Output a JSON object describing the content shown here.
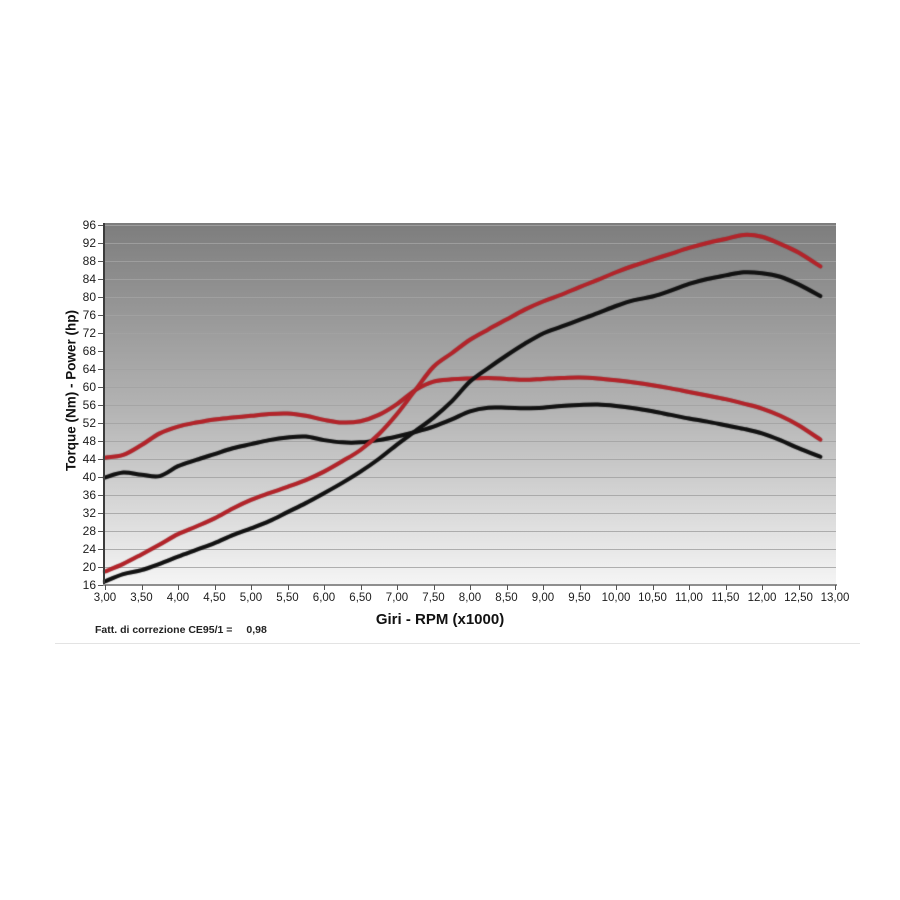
{
  "chart_data": {
    "type": "line",
    "title": "",
    "xlabel": "Giri - RPM (x1000)",
    "ylabel": "Torque (Nm) - Power (hp)",
    "xlim": [
      3,
      13
    ],
    "ylim": [
      16,
      96
    ],
    "grid": "horizontal gridlines every 4 units",
    "legend_position": "none",
    "background": "vertical gradient dark gray to white",
    "x_tick_labels": [
      "3,00",
      "3,50",
      "4,00",
      "4,50",
      "5,00",
      "5,50",
      "6,00",
      "6,50",
      "7,00",
      "7,50",
      "8,00",
      "8,50",
      "9,00",
      "9,50",
      "10,00",
      "10,50",
      "11,00",
      "11,50",
      "12,00",
      "12,50",
      "13,00"
    ],
    "y_tick_labels": [
      "96",
      "92",
      "88",
      "84",
      "80",
      "76",
      "72",
      "68",
      "64",
      "60",
      "56",
      "52",
      "48",
      "44",
      "40",
      "36",
      "32",
      "28",
      "24",
      "20",
      "16"
    ],
    "x": [
      3.0,
      3.25,
      3.5,
      3.75,
      4.0,
      4.25,
      4.5,
      4.75,
      5.0,
      5.25,
      5.5,
      5.75,
      6.0,
      6.25,
      6.5,
      6.75,
      7.0,
      7.25,
      7.5,
      7.75,
      8.0,
      8.25,
      8.5,
      8.75,
      9.0,
      9.25,
      9.5,
      9.75,
      10.0,
      10.25,
      10.5,
      10.75,
      11.0,
      11.25,
      11.5,
      11.75,
      12.0,
      12.25,
      12.5,
      12.8
    ],
    "series": [
      {
        "name": "torque-red",
        "color": "#b2242a",
        "values": [
          44.3,
          44.9,
          47.1,
          49.7,
          51.2,
          52.1,
          52.8,
          53.2,
          53.6,
          54.0,
          54.1,
          53.6,
          52.7,
          52.1,
          52.4,
          53.8,
          56.2,
          59.3,
          61.2,
          61.7,
          61.9,
          62.0,
          61.8,
          61.6,
          61.8,
          62.0,
          62.1,
          61.9,
          61.5,
          61.0,
          60.4,
          59.7,
          58.9,
          58.1,
          57.3,
          56.3,
          55.2,
          53.6,
          51.5,
          48.3
        ]
      },
      {
        "name": "torque-black",
        "color": "#121212",
        "values": [
          39.9,
          41.0,
          40.5,
          40.2,
          42.4,
          43.8,
          45.1,
          46.4,
          47.3,
          48.2,
          48.8,
          49.0,
          48.2,
          47.7,
          47.7,
          48.2,
          49.0,
          50.0,
          51.2,
          52.8,
          54.6,
          55.4,
          55.4,
          55.3,
          55.4,
          55.8,
          56.0,
          56.1,
          55.8,
          55.3,
          54.6,
          53.8,
          53.0,
          52.3,
          51.5,
          50.7,
          49.7,
          48.2,
          46.4,
          44.5
        ]
      },
      {
        "name": "power-red",
        "color": "#b2242a",
        "values": [
          19.0,
          20.7,
          22.8,
          25.0,
          27.3,
          29.0,
          30.8,
          33.0,
          34.9,
          36.4,
          37.8,
          39.3,
          41.2,
          43.5,
          46.0,
          49.5,
          54.0,
          59.3,
          64.5,
          67.5,
          70.5,
          72.8,
          75.0,
          77.2,
          79.0,
          80.5,
          82.2,
          83.8,
          85.5,
          87.0,
          88.3,
          89.6,
          90.9,
          92.0,
          92.9,
          93.8,
          93.4,
          91.8,
          89.9,
          86.8
        ]
      },
      {
        "name": "power-black",
        "color": "#121212",
        "values": [
          16.8,
          18.4,
          19.3,
          20.7,
          22.3,
          23.8,
          25.3,
          27.1,
          28.6,
          30.2,
          32.2,
          34.2,
          36.4,
          38.7,
          41.2,
          44.0,
          47.2,
          50.2,
          53.2,
          56.8,
          61.2,
          64.2,
          67.0,
          69.6,
          71.9,
          73.4,
          74.9,
          76.4,
          78.0,
          79.3,
          80.1,
          81.4,
          82.9,
          84.0,
          84.8,
          85.5,
          85.3,
          84.5,
          82.8,
          80.2
        ]
      }
    ]
  },
  "footer": {
    "correction_label": "Fatt. di correzione CE95/1 =",
    "correction_value": "0,98"
  },
  "colors": {
    "red_curve": "#b2242a",
    "black_curve": "#121212",
    "plot_top": "#7d7d7d",
    "plot_bottom": "#f5f5f5",
    "gridline": "#a2a2a2"
  }
}
